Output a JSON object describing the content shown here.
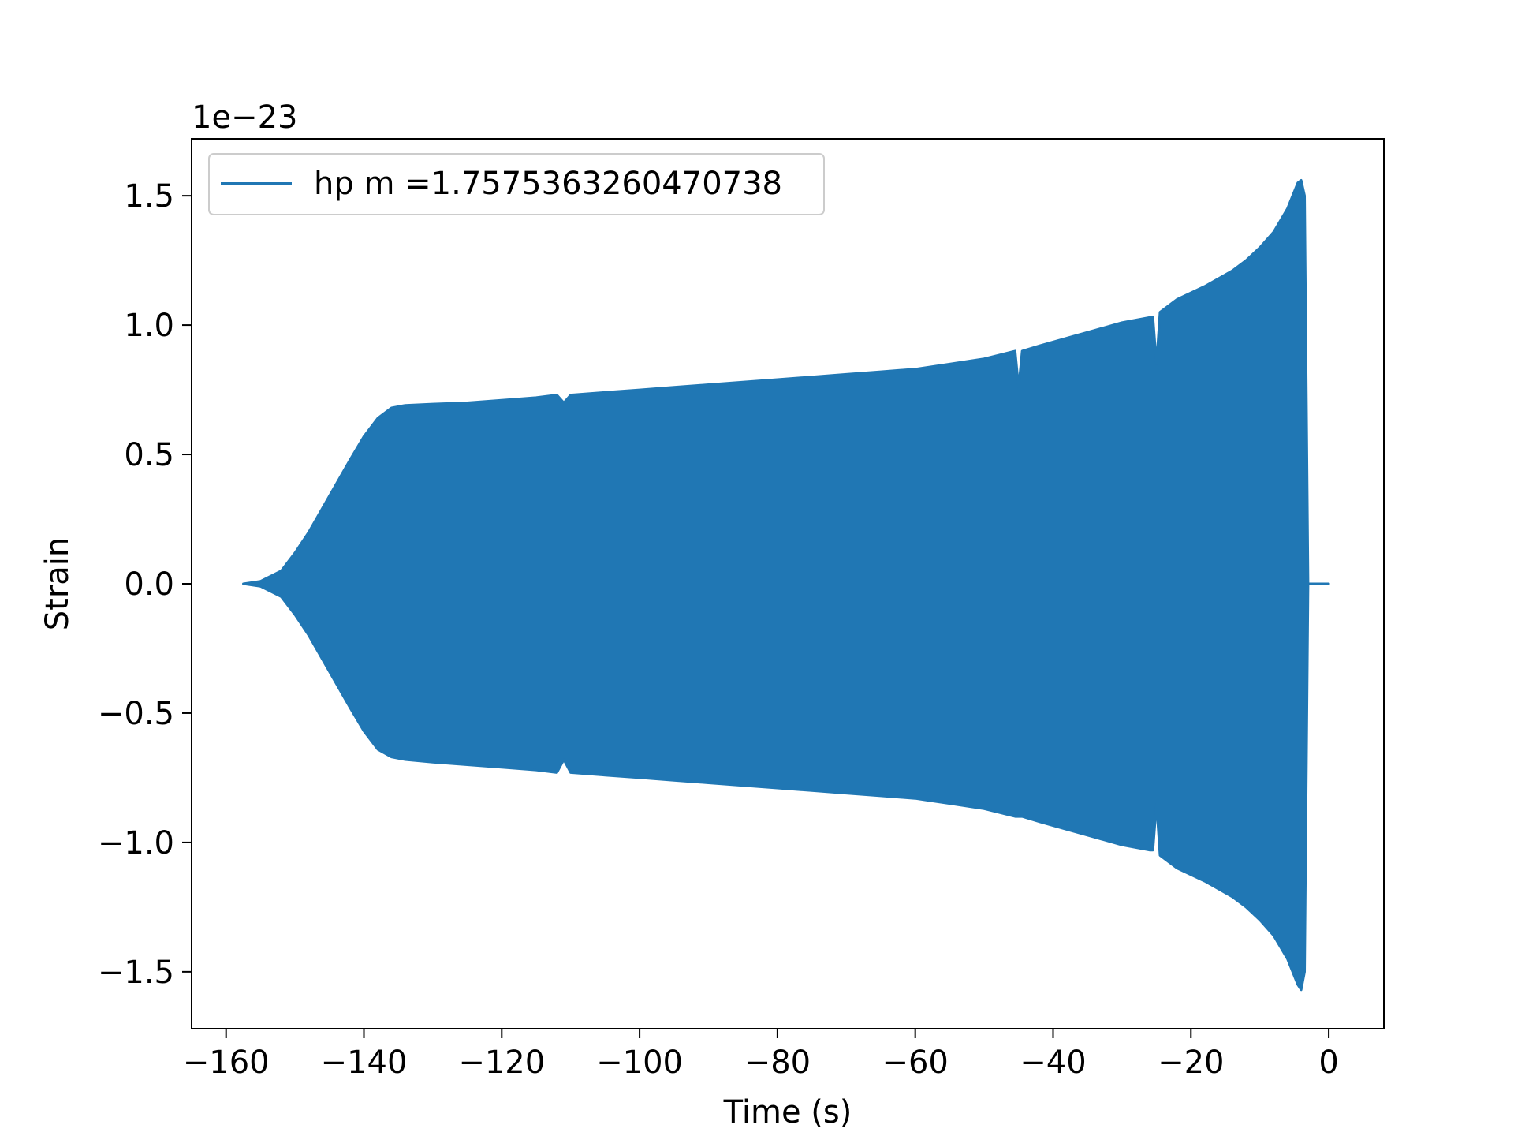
{
  "chart_data": {
    "type": "area",
    "title": "",
    "xlabel": "Time (s)",
    "ylabel": "Strain",
    "y_offset_label": "1e−23",
    "xlim": [
      -165,
      8
    ],
    "ylim": [
      -1.72,
      1.72
    ],
    "xticks": [
      -160,
      -140,
      -120,
      -100,
      -80,
      -60,
      -40,
      -20,
      0
    ],
    "xtick_labels": [
      "−160",
      "−140",
      "−120",
      "−100",
      "−80",
      "−60",
      "−40",
      "−20",
      "0"
    ],
    "yticks": [
      -1.5,
      -1.0,
      -0.5,
      0.0,
      0.5,
      1.0,
      1.5
    ],
    "ytick_labels": [
      "−1.5",
      "−1.0",
      "−0.5",
      "0.0",
      "0.5",
      "1.0",
      "1.5"
    ],
    "grid": false,
    "legend_position": "top-left",
    "series": [
      {
        "name": "hp m =1.7575363260470738",
        "color": "#2077b4",
        "x": [
          -157.5,
          -155,
          -152,
          -150,
          -148,
          -145,
          -142,
          -140,
          -138,
          -136,
          -134,
          -130,
          -125,
          -120,
          -115,
          -112,
          -111,
          -110,
          -105,
          -100,
          -95,
          -90,
          -85,
          -80,
          -75,
          -70,
          -65,
          -60,
          -55,
          -50,
          -47,
          -45.5,
          -45,
          -44.5,
          -42,
          -38,
          -34,
          -30,
          -26,
          -25.5,
          -25,
          -24.5,
          -22,
          -18,
          -14,
          -12,
          -10,
          -8,
          -6,
          -4.5,
          -4,
          -3.5,
          -3,
          0
        ],
        "upper": [
          0.0,
          0.01,
          0.05,
          0.12,
          0.2,
          0.34,
          0.48,
          0.57,
          0.64,
          0.68,
          0.69,
          0.695,
          0.7,
          0.71,
          0.72,
          0.73,
          0.7,
          0.73,
          0.74,
          0.75,
          0.76,
          0.77,
          0.78,
          0.79,
          0.8,
          0.81,
          0.82,
          0.83,
          0.85,
          0.87,
          0.89,
          0.9,
          0.76,
          0.9,
          0.92,
          0.95,
          0.98,
          1.01,
          1.03,
          1.03,
          0.85,
          1.05,
          1.1,
          1.15,
          1.21,
          1.25,
          1.3,
          1.36,
          1.45,
          1.55,
          1.56,
          1.5,
          0.0,
          0.0
        ],
        "lower": [
          0.0,
          -0.01,
          -0.05,
          -0.12,
          -0.2,
          -0.34,
          -0.48,
          -0.57,
          -0.64,
          -0.67,
          -0.68,
          -0.69,
          -0.7,
          -0.71,
          -0.72,
          -0.73,
          -0.68,
          -0.73,
          -0.74,
          -0.75,
          -0.76,
          -0.77,
          -0.78,
          -0.79,
          -0.8,
          -0.81,
          -0.82,
          -0.83,
          -0.85,
          -0.87,
          -0.89,
          -0.9,
          -0.9,
          -0.9,
          -0.92,
          -0.95,
          -0.98,
          -1.01,
          -1.03,
          -1.03,
          -0.85,
          -1.05,
          -1.1,
          -1.15,
          -1.21,
          -1.25,
          -1.3,
          -1.36,
          -1.45,
          -1.55,
          -1.57,
          -1.5,
          0.0,
          0.0
        ]
      }
    ]
  }
}
